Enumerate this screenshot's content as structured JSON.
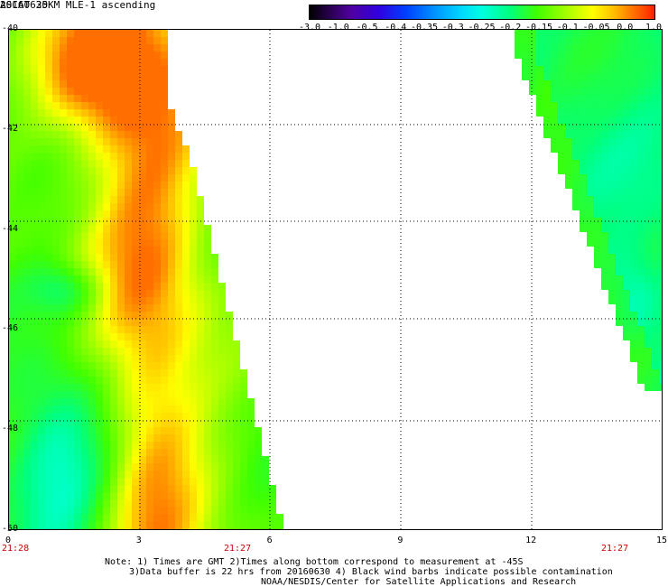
{
  "header": {
    "title": "ASCAT 25KM MLE-1 ascending",
    "date": "20160630"
  },
  "colorbar": {
    "labels": [
      "-3.0",
      "-1.0",
      "-0.5",
      "-0.4",
      "-0.35",
      "-0.3",
      "-0.25",
      "-0.2",
      "-0.15",
      "-0.1",
      "-0.05",
      "0.0",
      "1.0"
    ],
    "colors": [
      "#000000",
      "#5000a0",
      "#0040ff",
      "#00d8ff",
      "#00ff80",
      "#a0ff00",
      "#ffff00",
      "#ff7000",
      "#ff2000"
    ]
  },
  "axes": {
    "y_ticks": [
      "-40",
      "-42",
      "-44",
      "-46",
      "-48",
      "-50"
    ],
    "x_ticks": [
      "0",
      "3",
      "6",
      "9",
      "12",
      "15"
    ],
    "x_range": [
      0,
      15
    ],
    "y_range": [
      -40,
      -50
    ],
    "times": [
      "21:28",
      "21:27",
      "21:27"
    ]
  },
  "notes": {
    "line1": "Note: 1) Times are GMT 2)Times along bottom correspond to measurement at -45S",
    "line2": "3)Data buffer is 22 hrs from 20160630 4) Black wind barbs indicate possible contamination",
    "line3": "NOAA/NESDIS/Center for Satellite Applications and Research"
  }
}
